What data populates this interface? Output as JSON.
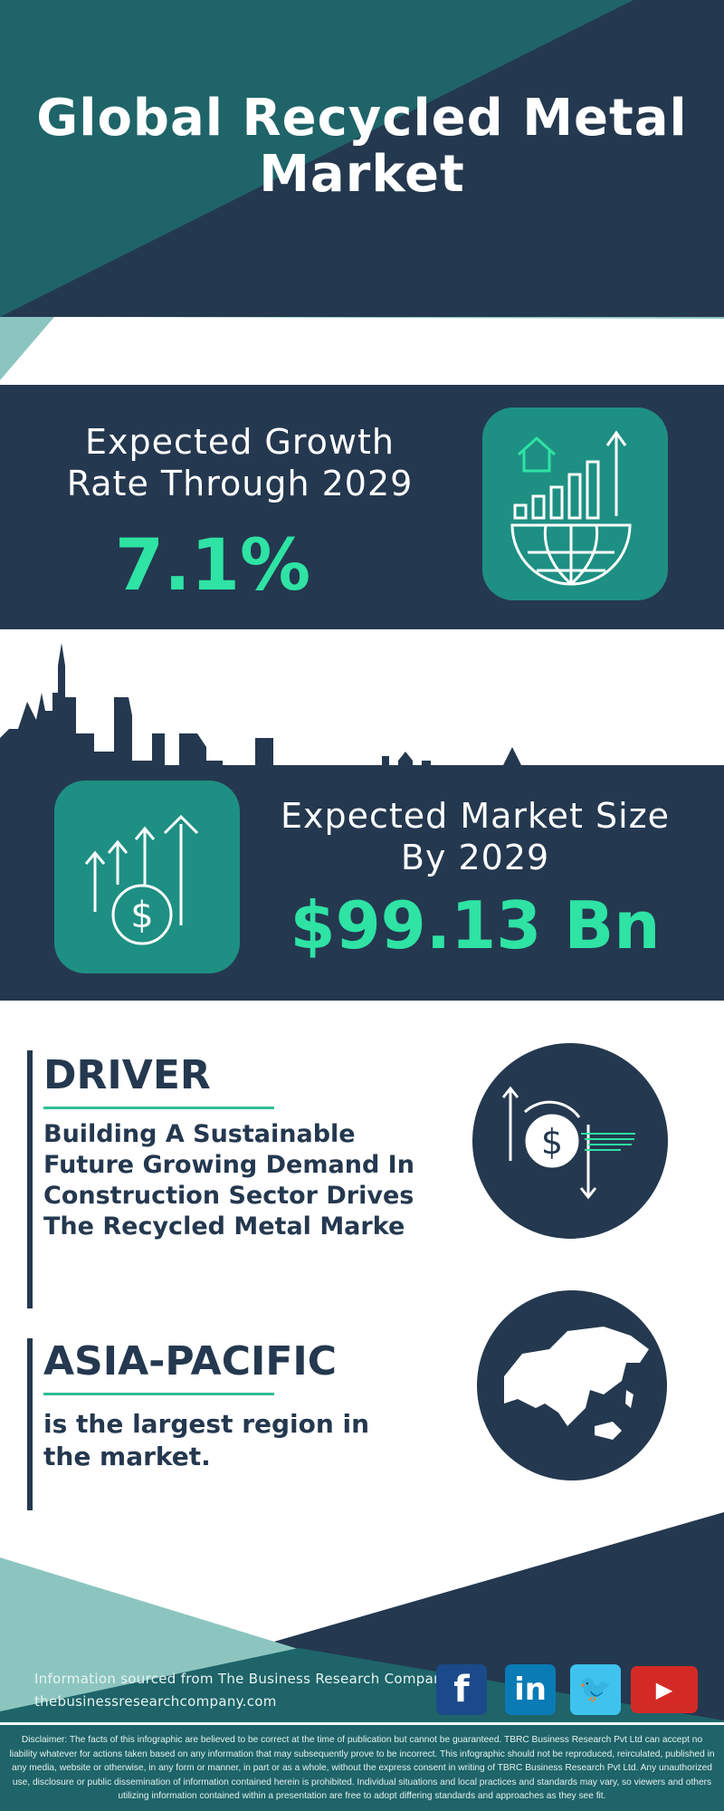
{
  "title": "Global Recycled Metal Market",
  "growth": {
    "label": "Expected Growth Rate Through 2029",
    "value": "7.1%"
  },
  "market_size": {
    "label": "Expected Market Size By 2029",
    "value": "$99.13 Bn"
  },
  "driver": {
    "heading": "DRIVER",
    "text": "Building A Sustainable Future Growing Demand In Construction Sector Drives The Recycled Metal Marke"
  },
  "region": {
    "heading": "ASIA-PACIFIC",
    "text": "is the largest region in the market."
  },
  "footer": {
    "source": "Information sourced from The Business Research Company",
    "website": "thebusinessresearchcompany.com",
    "social": [
      "facebook-icon",
      "linkedin-icon",
      "twitter-icon",
      "youtube-icon"
    ]
  },
  "disclaimer": "Disclaimer: The facts of this infographic are believed to be correct at the time of publication but cannot be guaranteed. TBRC Business Research Pvt Ltd can accept no liability whatever for actions taken based on any information that may subsequently prove to be incorrect. This infographic should not be reproduced, reirculated, published in any media, website or otherwise, in any form or manner, in part or as a whole, without the express consent in writing of TBRC Business Research Pvt Ltd. Any unauthorized use, disclosure or public dissemination of information contained herein is prohibited. Individual situations and local practices and standards may vary, so viewers and others utilizing information contained within a presentation are free to adopt differing standards and approaches as they see fit.",
  "colors": {
    "navy": "#24384f",
    "teal": "#1e6468",
    "accent": "#2ee3a4",
    "icon_bg": "#1e8f83",
    "light_teal": "#8cc5c0"
  }
}
